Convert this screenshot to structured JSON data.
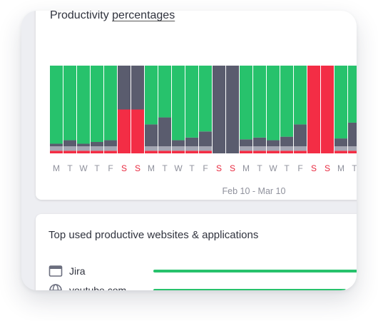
{
  "productivity": {
    "title_prefix": "Productivity ",
    "title_link": "percentages",
    "date_range": "Feb 10 - Mar 10"
  },
  "colors": {
    "productive": "#27c26c",
    "neutral": "#5a5c6e",
    "neutral_light": "#a4a6b3",
    "unproductive": "#f32d45",
    "weekday_label": "#8f919c",
    "weekend_label": "#e8293f"
  },
  "chart_data": {
    "type": "bar",
    "stacked": true,
    "categories": [
      "M",
      "T",
      "W",
      "T",
      "F",
      "S",
      "S",
      "M",
      "T",
      "W",
      "T",
      "F",
      "S",
      "S",
      "M",
      "T",
      "W",
      "T",
      "F",
      "S",
      "S",
      "M",
      "T"
    ],
    "weekend": [
      false,
      false,
      false,
      false,
      false,
      true,
      true,
      false,
      false,
      false,
      false,
      false,
      true,
      true,
      false,
      false,
      false,
      false,
      false,
      true,
      true,
      false,
      false
    ],
    "series": [
      {
        "values": [
          3,
          3,
          3,
          3,
          3,
          50,
          50,
          3,
          3,
          3,
          3,
          3,
          0,
          0,
          3,
          3,
          3,
          3,
          3,
          100,
          100,
          3,
          3
        ]
      },
      {
        "values": [
          5,
          5,
          5,
          5,
          5,
          0,
          0,
          5,
          5,
          5,
          5,
          5,
          0,
          0,
          5,
          5,
          5,
          5,
          5,
          0,
          0,
          5,
          5
        ]
      },
      {
        "values": [
          3,
          7,
          3,
          5,
          7,
          50,
          50,
          25,
          33,
          7,
          10,
          17,
          100,
          100,
          8,
          10,
          7,
          11,
          25,
          0,
          0,
          9,
          27
        ]
      },
      {
        "values": [
          89,
          85,
          89,
          87,
          85,
          0,
          0,
          67,
          59,
          85,
          82,
          75,
          0,
          0,
          84,
          82,
          85,
          81,
          67,
          0,
          0,
          83,
          65
        ]
      }
    ],
    "ylim": [
      0,
      100
    ],
    "xlabel": "Feb 10 - Mar 10"
  },
  "top_apps": {
    "title": "Top used productive websites & applications",
    "items": [
      {
        "name": "Jira",
        "icon": "browser-window-icon",
        "bar_fraction": 1.0
      },
      {
        "name": "youtube.com",
        "icon": "globe-icon",
        "bar_fraction": 0.9
      }
    ]
  }
}
